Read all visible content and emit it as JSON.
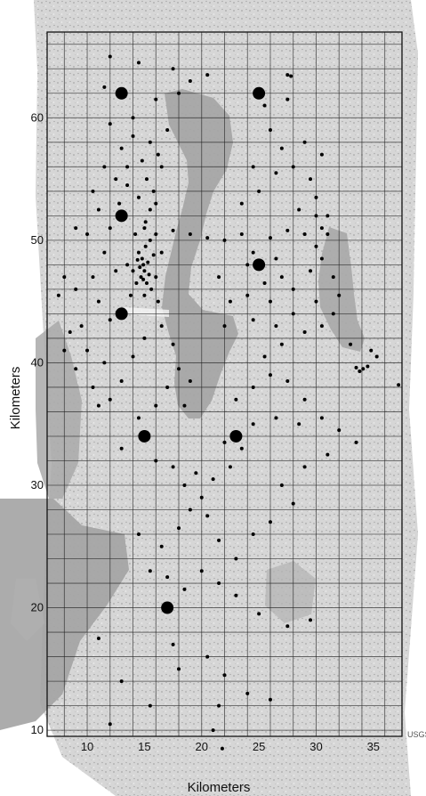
{
  "figure": {
    "x_axis_title": "Kilometers",
    "y_axis_title": "Kilometers",
    "x_ticks": [
      "10",
      "15",
      "20",
      "25",
      "30",
      "35"
    ],
    "y_ticks": [
      "10",
      "20",
      "30",
      "40",
      "50",
      "60"
    ],
    "credit": "USGS",
    "colors": {
      "water": "#a9a9a9",
      "land": "#d8d8d8",
      "grid": "#222222",
      "marker": "#000000"
    }
  },
  "chart_data": {
    "type": "scatter",
    "xlabel": "Kilometers",
    "ylabel": "Kilometers",
    "xlim": [
      6.5,
      37.5
    ],
    "ylim": [
      9.5,
      67
    ],
    "grid": "on",
    "grid_spacing_km": 2,
    "station_points": [
      [
        13,
        62
      ],
      [
        25,
        62
      ],
      [
        13,
        52
      ],
      [
        25,
        48
      ],
      [
        13,
        44
      ],
      [
        15,
        34
      ],
      [
        23,
        34
      ],
      [
        17,
        20
      ]
    ],
    "incident_points": [
      [
        14.8,
        48.5
      ],
      [
        14.9,
        48.0
      ],
      [
        15.0,
        47.5
      ],
      [
        14.7,
        47.0
      ],
      [
        15.2,
        46.5
      ],
      [
        14.5,
        49.0
      ],
      [
        14.6,
        47.8
      ],
      [
        15.3,
        48.2
      ],
      [
        14.9,
        46.8
      ],
      [
        15.1,
        49.5
      ],
      [
        15.4,
        47.2
      ],
      [
        14.4,
        48.4
      ],
      [
        15.0,
        45.5
      ],
      [
        15.6,
        46.0
      ],
      [
        14.3,
        46.5
      ],
      [
        15.8,
        48.8
      ],
      [
        14.0,
        47.5
      ],
      [
        16.0,
        47.0
      ],
      [
        15.5,
        50.0
      ],
      [
        14.2,
        50.5
      ],
      [
        16.5,
        49.0
      ],
      [
        13.5,
        48.0
      ],
      [
        16.2,
        45.0
      ],
      [
        13.8,
        45.5
      ],
      [
        15.0,
        51.0
      ],
      [
        15.5,
        52.5
      ],
      [
        14.5,
        53.5
      ],
      [
        16.0,
        53.0
      ],
      [
        15.2,
        55.0
      ],
      [
        13.5,
        54.5
      ],
      [
        14.8,
        56.5
      ],
      [
        16.5,
        56.0
      ],
      [
        13.0,
        57.5
      ],
      [
        15.5,
        58.0
      ],
      [
        17.0,
        59.0
      ],
      [
        14.0,
        60.0
      ],
      [
        16.0,
        61.5
      ],
      [
        12.0,
        59.5
      ],
      [
        11.5,
        56.0
      ],
      [
        10.5,
        54.0
      ],
      [
        12.5,
        55.0
      ],
      [
        11.0,
        52.5
      ],
      [
        12.0,
        51.0
      ],
      [
        10.0,
        50.5
      ],
      [
        9.0,
        51.0
      ],
      [
        11.5,
        49.0
      ],
      [
        12.5,
        47.5
      ],
      [
        10.5,
        47.0
      ],
      [
        11.0,
        45.0
      ],
      [
        12.0,
        43.5
      ],
      [
        9.5,
        43.0
      ],
      [
        8.5,
        42.5
      ],
      [
        10.0,
        41.0
      ],
      [
        11.5,
        40.0
      ],
      [
        9.0,
        39.5
      ],
      [
        10.5,
        38.0
      ],
      [
        12.0,
        37.0
      ],
      [
        11.0,
        36.5
      ],
      [
        13.0,
        38.5
      ],
      [
        14.0,
        40.5
      ],
      [
        15.0,
        42.0
      ],
      [
        16.5,
        43.0
      ],
      [
        17.5,
        41.5
      ],
      [
        18.0,
        39.5
      ],
      [
        17.0,
        38.0
      ],
      [
        19.0,
        38.5
      ],
      [
        18.5,
        36.5
      ],
      [
        16.0,
        36.5
      ],
      [
        14.5,
        35.5
      ],
      [
        13.0,
        33.0
      ],
      [
        16.0,
        32.0
      ],
      [
        17.5,
        31.5
      ],
      [
        18.5,
        30.0
      ],
      [
        19.5,
        31.0
      ],
      [
        20.0,
        29.0
      ],
      [
        21.0,
        30.5
      ],
      [
        22.5,
        31.5
      ],
      [
        23.5,
        33.0
      ],
      [
        24.5,
        35.0
      ],
      [
        22.0,
        33.5
      ],
      [
        20.5,
        27.5
      ],
      [
        19.0,
        28.0
      ],
      [
        18.0,
        26.5
      ],
      [
        21.5,
        25.5
      ],
      [
        23.0,
        24.0
      ],
      [
        24.5,
        26.0
      ],
      [
        26.0,
        27.0
      ],
      [
        28.0,
        28.5
      ],
      [
        27.0,
        30.0
      ],
      [
        29.0,
        31.5
      ],
      [
        20.0,
        23.0
      ],
      [
        21.5,
        22.0
      ],
      [
        23.0,
        21.0
      ],
      [
        25.0,
        19.5
      ],
      [
        27.5,
        18.5
      ],
      [
        29.5,
        19.0
      ],
      [
        18.5,
        21.5
      ],
      [
        17.0,
        22.5
      ],
      [
        16.5,
        25.0
      ],
      [
        15.5,
        23.0
      ],
      [
        14.5,
        26.0
      ],
      [
        17.5,
        17.0
      ],
      [
        18.0,
        15.0
      ],
      [
        20.5,
        16.0
      ],
      [
        22.0,
        14.5
      ],
      [
        24.0,
        13.0
      ],
      [
        21.5,
        12.0
      ],
      [
        21.0,
        10.0
      ],
      [
        21.8,
        8.5
      ],
      [
        15.5,
        12.0
      ],
      [
        13.0,
        14.0
      ],
      [
        12.0,
        10.5
      ],
      [
        11.0,
        17.5
      ],
      [
        26.0,
        12.5
      ],
      [
        19.0,
        63.0
      ],
      [
        20.5,
        63.5
      ],
      [
        18.0,
        62.0
      ],
      [
        17.5,
        64.0
      ],
      [
        12.0,
        65.0
      ],
      [
        14.5,
        64.5
      ],
      [
        11.5,
        62.5
      ],
      [
        16.0,
        50.5
      ],
      [
        17.5,
        50.8
      ],
      [
        19.0,
        50.5
      ],
      [
        20.5,
        50.2
      ],
      [
        22.0,
        50.0
      ],
      [
        23.5,
        50.5
      ],
      [
        26.0,
        50.2
      ],
      [
        27.5,
        50.8
      ],
      [
        29.0,
        50.5
      ],
      [
        30.5,
        51.0
      ],
      [
        24.0,
        48.0
      ],
      [
        24.5,
        49.0
      ],
      [
        26.5,
        48.5
      ],
      [
        25.5,
        46.5
      ],
      [
        27.0,
        47.0
      ],
      [
        28.0,
        46.0
      ],
      [
        29.5,
        47.5
      ],
      [
        26.0,
        45.0
      ],
      [
        24.0,
        45.5
      ],
      [
        22.5,
        45.0
      ],
      [
        21.5,
        47.0
      ],
      [
        22.0,
        43.0
      ],
      [
        24.5,
        43.5
      ],
      [
        26.5,
        43.0
      ],
      [
        28.0,
        44.0
      ],
      [
        29.0,
        42.5
      ],
      [
        30.5,
        43.0
      ],
      [
        31.5,
        44.0
      ],
      [
        27.0,
        41.5
      ],
      [
        25.5,
        40.5
      ],
      [
        26.0,
        39.0
      ],
      [
        24.5,
        38.0
      ],
      [
        27.5,
        38.5
      ],
      [
        26.5,
        35.5
      ],
      [
        23.0,
        37.0
      ],
      [
        23.5,
        53.0
      ],
      [
        25.0,
        54.0
      ],
      [
        26.5,
        55.5
      ],
      [
        28.0,
        56.0
      ],
      [
        29.5,
        55.0
      ],
      [
        30.0,
        53.5
      ],
      [
        28.5,
        52.5
      ],
      [
        31.0,
        52.0
      ],
      [
        24.5,
        56.0
      ],
      [
        27.0,
        57.5
      ],
      [
        29.0,
        58.0
      ],
      [
        30.5,
        57.0
      ],
      [
        26.0,
        59.0
      ],
      [
        25.5,
        61.0
      ],
      [
        27.5,
        61.5
      ],
      [
        27.5,
        63.5
      ],
      [
        27.8,
        63.4
      ],
      [
        30.5,
        48.5
      ],
      [
        31.5,
        47.0
      ],
      [
        32.0,
        45.5
      ],
      [
        30.0,
        45.0
      ],
      [
        30.0,
        49.5
      ],
      [
        31.0,
        50.5
      ],
      [
        30.0,
        52.0
      ],
      [
        33.5,
        39.6
      ],
      [
        33.8,
        39.3
      ],
      [
        34.1,
        39.5
      ],
      [
        34.5,
        39.7
      ],
      [
        34.8,
        41.0
      ],
      [
        35.3,
        40.5
      ],
      [
        33.0,
        41.5
      ],
      [
        37.2,
        38.2
      ],
      [
        29.0,
        37.0
      ],
      [
        28.5,
        35.0
      ],
      [
        30.5,
        35.5
      ],
      [
        32.0,
        34.5
      ],
      [
        33.5,
        33.5
      ],
      [
        31.0,
        32.5
      ],
      [
        8.0,
        47.0
      ],
      [
        7.5,
        45.5
      ],
      [
        9.0,
        46.0
      ],
      [
        8.0,
        41.0
      ],
      [
        14.0,
        58.5
      ],
      [
        13.5,
        56.0
      ],
      [
        15.8,
        54.0
      ],
      [
        16.2,
        57.0
      ],
      [
        12.8,
        53.0
      ],
      [
        15.1,
        51.5
      ]
    ]
  }
}
